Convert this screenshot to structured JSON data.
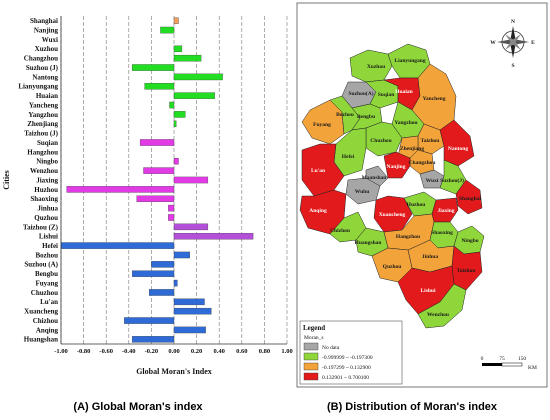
{
  "captions": {
    "left": "(A) Global Moran's index",
    "right": "(B) Distribution of Moran's index"
  },
  "colors": {
    "orange": "#f0a05a",
    "green": "#22dd22",
    "magenta": "#e23be6",
    "purple": "#b34fd8",
    "blue": "#2f6bd6",
    "map_gray": "#a6a6a6",
    "map_green": "#8fd63b",
    "map_orange": "#f2a33a",
    "map_red": "#e31a1c"
  },
  "chart_data": {
    "type": "bar",
    "orientation": "horizontal",
    "xlabel": "Global Moran's Index",
    "ylabel": "Cities",
    "xlim": [
      -1.0,
      1.0
    ],
    "xticks": [
      "-1.00",
      "-0.80",
      "-0.60",
      "-0.40",
      "-0.20",
      "0.00",
      "0.20",
      "0.40",
      "0.60",
      "0.80",
      "1.00"
    ],
    "xtick_values": [
      -1.0,
      -0.8,
      -0.6,
      -0.4,
      -0.2,
      0.0,
      0.2,
      0.4,
      0.6,
      0.8,
      1.0
    ],
    "categories": [
      "Shanghai",
      "Nanjing",
      "Wuxi",
      "Xuzhou",
      "Changzhou",
      "Suzhou (J)",
      "Nantong",
      "Lianyungang",
      "Huaian",
      "Yancheng",
      "Yangzhou",
      "Zhenjiang",
      "Taizhou (J)",
      "Suqian",
      "Hangzhou",
      "Ningbo",
      "Wenzhou",
      "Jiaxing",
      "Huzhou",
      "Shaoxing",
      "Jinhua",
      "Quzhou",
      "Taizhou (Z)",
      "Lishui",
      "Hefei",
      "Bozhou",
      "Suzhou (A)",
      "Bengbu",
      "Fuyang",
      "Chuzhou",
      "Lu'an",
      "Xuancheng",
      "Chizhou",
      "Anqing",
      "Huangshan"
    ],
    "values": [
      0.04,
      -0.12,
      0.0,
      0.07,
      0.24,
      -0.37,
      0.43,
      -0.26,
      0.36,
      -0.04,
      0.1,
      0.02,
      0.0,
      -0.3,
      0.0,
      0.04,
      -0.27,
      0.3,
      -0.95,
      -0.33,
      -0.05,
      -0.05,
      0.3,
      0.7,
      -1.0,
      0.14,
      -0.2,
      -0.37,
      0.03,
      -0.22,
      0.27,
      0.33,
      -0.44,
      0.28,
      -0.37
    ],
    "bar_colors": [
      "orange",
      "green",
      "green",
      "green",
      "green",
      "green",
      "green",
      "green",
      "green",
      "green",
      "green",
      "green",
      "green",
      "magenta",
      "magenta",
      "magenta",
      "magenta",
      "magenta",
      "magenta",
      "magenta",
      "magenta",
      "magenta",
      "purple",
      "purple",
      "blue",
      "blue",
      "blue",
      "blue",
      "blue",
      "blue",
      "blue",
      "blue",
      "blue",
      "blue",
      "blue"
    ],
    "grid": "vertical dashed"
  },
  "map": {
    "legend_title": "Legend",
    "legend_subtitle": "Moran_s",
    "legend_items": [
      {
        "label": "No data",
        "color": "map_gray"
      },
      {
        "label": "-0.999999 ~ -0.197300",
        "color": "map_green"
      },
      {
        "label": "-0.197299 ~ 0.132900",
        "color": "map_orange"
      },
      {
        "label": "0.132901 ~ 0.700100",
        "color": "map_red"
      }
    ],
    "scale_labels": [
      "0",
      "75",
      "150"
    ],
    "scale_unit": "KM",
    "compass": {
      "n": "N",
      "s": "S",
      "e": "E",
      "w": "W"
    },
    "labels": [
      {
        "text": "Xuzhou",
        "light": false
      },
      {
        "text": "Lianyungang",
        "light": false
      },
      {
        "text": "Suzhou(A)",
        "light": false
      },
      {
        "text": "Suqian",
        "light": false
      },
      {
        "text": "Huaian",
        "light": true
      },
      {
        "text": "Yancheng",
        "light": false
      },
      {
        "text": "Fuyang",
        "light": false
      },
      {
        "text": "Bozhou",
        "light": false
      },
      {
        "text": "Bengbu",
        "light": false
      },
      {
        "text": "Yangzhou",
        "light": false
      },
      {
        "text": "Taizhou",
        "light": false
      },
      {
        "text": "Chuzhou",
        "light": false
      },
      {
        "text": "Hefei",
        "light": false
      },
      {
        "text": "Nantong",
        "light": true
      },
      {
        "text": "Zhenjiang",
        "light": false
      },
      {
        "text": "Changzhou",
        "light": false
      },
      {
        "text": "Nanjing",
        "light": true
      },
      {
        "text": "Lu'an",
        "light": true
      },
      {
        "text": "Wuxi",
        "light": false
      },
      {
        "text": "Suzhou(J)",
        "light": false
      },
      {
        "text": "Maanshan",
        "light": false
      },
      {
        "text": "Wuhu",
        "light": false
      },
      {
        "text": "Shanghai",
        "light": false
      },
      {
        "text": "Anqing",
        "light": true
      },
      {
        "text": "Xuancheng",
        "light": true
      },
      {
        "text": "Huzhou",
        "light": false
      },
      {
        "text": "Jiaxing",
        "light": true
      },
      {
        "text": "Chizhou",
        "light": false
      },
      {
        "text": "Huangshan",
        "light": false
      },
      {
        "text": "Hangzhou",
        "light": false
      },
      {
        "text": "Shaoxing",
        "light": false
      },
      {
        "text": "Ningbo",
        "light": false
      },
      {
        "text": "Jinhua",
        "light": false
      },
      {
        "text": "Quzhou",
        "light": false
      },
      {
        "text": "Taizhou",
        "light": false
      },
      {
        "text": "Lishui",
        "light": true
      },
      {
        "text": "Wenzhou",
        "light": false
      }
    ]
  }
}
